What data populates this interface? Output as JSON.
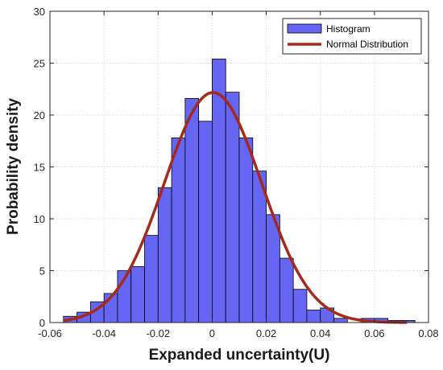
{
  "chart_data": {
    "type": "bar",
    "title": "",
    "xlabel": "Expanded uncertainty(U)",
    "ylabel": "Probability density",
    "xlim": [
      -0.06,
      0.08
    ],
    "ylim": [
      0,
      30
    ],
    "xticks": [
      -0.06,
      -0.04,
      -0.02,
      0,
      0.02,
      0.04,
      0.06,
      0.08
    ],
    "xtick_labels": [
      "-0.06",
      "-0.04",
      "-0.02",
      "0",
      "0.02",
      "0.04",
      "0.06",
      "0.08"
    ],
    "yticks": [
      0,
      5,
      10,
      15,
      20,
      25,
      30
    ],
    "ytick_labels": [
      "0",
      "5",
      "10",
      "15",
      "20",
      "25",
      "30"
    ],
    "grid": true,
    "legend_position": "top-right",
    "bin_width": 0.005,
    "series": [
      {
        "name": "Histogram",
        "kind": "histogram",
        "color": "#6666f5",
        "edge_color": "#000000",
        "bin_starts": [
          -0.055,
          -0.05,
          -0.045,
          -0.04,
          -0.035,
          -0.03,
          -0.025,
          -0.02,
          -0.015,
          -0.01,
          -0.005,
          0.0,
          0.005,
          0.01,
          0.015,
          0.02,
          0.025,
          0.03,
          0.035,
          0.04,
          0.045,
          0.05,
          0.055,
          0.06,
          0.065,
          0.07
        ],
        "values": [
          0.6,
          1.0,
          2.0,
          2.8,
          5.0,
          5.4,
          8.4,
          13.0,
          17.8,
          21.6,
          19.4,
          25.4,
          22.2,
          17.8,
          14.6,
          10.4,
          6.2,
          3.2,
          1.2,
          1.4,
          0.4,
          0.0,
          0.4,
          0.4,
          0.2,
          0.2
        ]
      },
      {
        "name": "Normal Distribution",
        "kind": "line",
        "color": "#a52a1c",
        "mean": 0.0003,
        "std": 0.018
      }
    ]
  }
}
